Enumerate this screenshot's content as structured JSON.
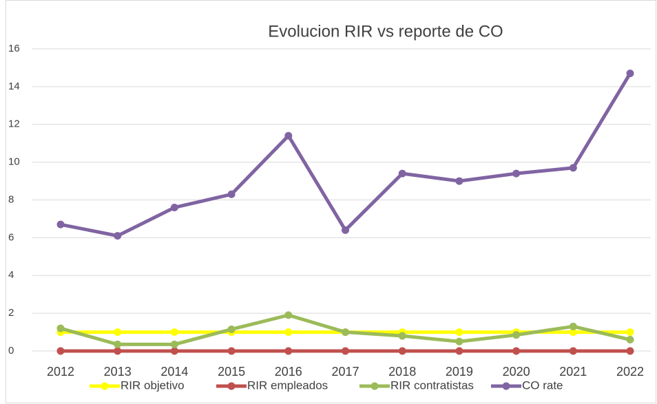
{
  "chart_data": {
    "type": "line",
    "title": "Evolucion  RIR vs reporte de CO",
    "categories": [
      "2012",
      "2013",
      "2014",
      "2015",
      "2016",
      "2017",
      "2018",
      "2019",
      "2020",
      "2021",
      "2022"
    ],
    "series": [
      {
        "name": "RIR objetivo",
        "color": "#ffff00",
        "values": [
          1,
          1,
          1,
          1,
          1,
          1,
          1,
          1,
          1,
          1,
          1
        ]
      },
      {
        "name": "RIR empleados",
        "color": "#c0504d",
        "values": [
          0,
          0,
          0,
          0,
          0,
          0,
          0,
          0,
          0,
          0,
          0
        ]
      },
      {
        "name": "RIR contratistas",
        "color": "#9bbb59",
        "values": [
          1.2,
          0.35,
          0.35,
          1.15,
          1.9,
          1.0,
          0.8,
          0.5,
          0.85,
          1.3,
          0.6
        ]
      },
      {
        "name": "CO rate",
        "color": "#8064a2",
        "values": [
          6.7,
          6.1,
          7.6,
          8.3,
          11.4,
          6.4,
          9.4,
          9.0,
          9.4,
          9.7,
          14.7
        ]
      }
    ],
    "ylim": [
      0,
      16
    ],
    "yticks": [
      0,
      2,
      4,
      6,
      8,
      10,
      12,
      14,
      16
    ],
    "grid": true,
    "legend": "bottom"
  }
}
